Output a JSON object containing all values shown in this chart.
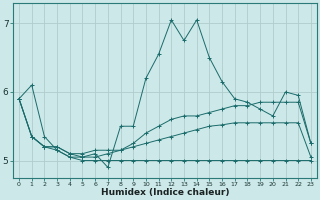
{
  "xlabel": "Humidex (Indice chaleur)",
  "xlim": [
    -0.5,
    23.5
  ],
  "ylim": [
    4.75,
    7.3
  ],
  "yticks": [
    5,
    6,
    7
  ],
  "xticks": [
    0,
    1,
    2,
    3,
    4,
    5,
    6,
    7,
    8,
    9,
    10,
    11,
    12,
    13,
    14,
    15,
    16,
    17,
    18,
    19,
    20,
    21,
    22,
    23
  ],
  "bg_color": "#cde8e8",
  "line_color": "#1a6b6b",
  "grid_color": "#b0cccc",
  "series": [
    [
      5.9,
      6.1,
      5.35,
      5.15,
      5.05,
      5.05,
      5.1,
      4.9,
      5.5,
      5.5,
      6.2,
      6.55,
      7.05,
      6.75,
      7.05,
      6.5,
      6.15,
      5.9,
      5.85,
      5.75,
      5.65,
      6.0,
      5.95,
      5.25
    ],
    [
      5.9,
      5.35,
      5.2,
      5.2,
      5.1,
      5.1,
      5.15,
      5.15,
      5.15,
      5.25,
      5.4,
      5.5,
      5.6,
      5.65,
      5.65,
      5.7,
      5.75,
      5.8,
      5.8,
      5.85,
      5.85,
      5.85,
      5.85,
      5.25
    ],
    [
      5.9,
      5.35,
      5.2,
      5.2,
      5.1,
      5.05,
      5.05,
      5.1,
      5.15,
      5.2,
      5.25,
      5.3,
      5.35,
      5.4,
      5.45,
      5.5,
      5.52,
      5.55,
      5.55,
      5.55,
      5.55,
      5.55,
      5.55,
      5.05
    ],
    [
      5.9,
      5.35,
      5.2,
      5.15,
      5.05,
      5.0,
      5.0,
      5.0,
      5.0,
      5.0,
      5.0,
      5.0,
      5.0,
      5.0,
      5.0,
      5.0,
      5.0,
      5.0,
      5.0,
      5.0,
      5.0,
      5.0,
      5.0,
      5.0
    ]
  ]
}
